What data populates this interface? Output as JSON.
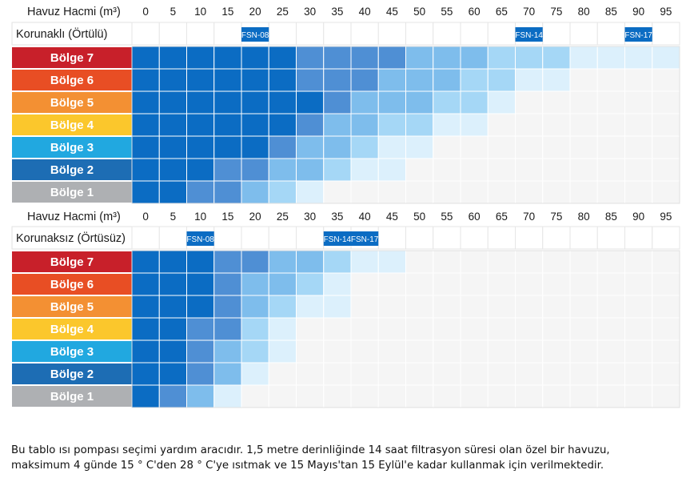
{
  "chart_data": [
    {
      "type": "heatmap",
      "header_label": "Havuz Hacmi (m³)",
      "section_label": "Korunaklı (Örtülü)",
      "x": [
        0,
        5,
        10,
        15,
        20,
        25,
        30,
        35,
        40,
        45,
        50,
        55,
        60,
        65,
        70,
        75,
        80,
        85,
        90,
        95
      ],
      "markers": [
        {
          "label": "FSN-08",
          "x": 20
        },
        {
          "label": "FSN-14",
          "x": 70
        },
        {
          "label": "FSN-17",
          "x": 90
        }
      ],
      "rows": [
        {
          "name": "Bölge 7",
          "color": "#c8202a",
          "levels": [
            5,
            5,
            5,
            5,
            5,
            5,
            4,
            4,
            4,
            4,
            3,
            3,
            3,
            2,
            2,
            2,
            1,
            1,
            1,
            1
          ]
        },
        {
          "name": "Bölge 6",
          "color": "#e84e24",
          "levels": [
            5,
            5,
            5,
            5,
            5,
            5,
            4,
            4,
            4,
            3,
            3,
            3,
            2,
            2,
            1,
            1,
            0,
            0,
            0,
            0
          ]
        },
        {
          "name": "Bölge 5",
          "color": "#f39033",
          "levels": [
            5,
            5,
            5,
            5,
            5,
            5,
            5,
            4,
            3,
            3,
            3,
            2,
            2,
            1,
            0,
            0,
            0,
            0,
            0,
            0
          ]
        },
        {
          "name": "Bölge 4",
          "color": "#fbc72c",
          "levels": [
            5,
            5,
            5,
            5,
            5,
            5,
            4,
            3,
            3,
            2,
            2,
            1,
            1,
            0,
            0,
            0,
            0,
            0,
            0,
            0
          ]
        },
        {
          "name": "Bölge 3",
          "color": "#21a8e0",
          "levels": [
            5,
            5,
            5,
            5,
            5,
            4,
            3,
            3,
            2,
            1,
            1,
            0,
            0,
            0,
            0,
            0,
            0,
            0,
            0,
            0
          ]
        },
        {
          "name": "Bölge 2",
          "color": "#1d6db4",
          "levels": [
            5,
            5,
            5,
            4,
            4,
            3,
            3,
            2,
            1,
            1,
            0,
            0,
            0,
            0,
            0,
            0,
            0,
            0,
            0,
            0
          ]
        },
        {
          "name": "Bölge 1",
          "color": "#aeb0b3",
          "levels": [
            5,
            5,
            4,
            4,
            3,
            2,
            1,
            0,
            0,
            0,
            0,
            0,
            0,
            0,
            0,
            0,
            0,
            0,
            0,
            0
          ]
        }
      ]
    },
    {
      "type": "heatmap",
      "header_label": "Havuz Hacmi (m³)",
      "section_label": "Korunaksız (Örtüsüz)",
      "x": [
        0,
        5,
        10,
        15,
        20,
        25,
        30,
        35,
        40,
        45,
        50,
        55,
        60,
        65,
        70,
        75,
        80,
        85,
        90,
        95
      ],
      "markers": [
        {
          "label": "FSN-08",
          "x": 10
        },
        {
          "label": "FSN-14",
          "x": 35
        },
        {
          "label": "FSN-17",
          "x": 40
        }
      ],
      "rows": [
        {
          "name": "Bölge 7",
          "color": "#c8202a",
          "levels": [
            5,
            5,
            5,
            4,
            4,
            3,
            3,
            2,
            1,
            1,
            0,
            0,
            0,
            0,
            0,
            0,
            0,
            0,
            0,
            0
          ]
        },
        {
          "name": "Bölge 6",
          "color": "#e84e24",
          "levels": [
            5,
            5,
            5,
            4,
            3,
            3,
            2,
            1,
            0,
            0,
            0,
            0,
            0,
            0,
            0,
            0,
            0,
            0,
            0,
            0
          ]
        },
        {
          "name": "Bölge 5",
          "color": "#f39033",
          "levels": [
            5,
            5,
            5,
            4,
            3,
            2,
            1,
            1,
            0,
            0,
            0,
            0,
            0,
            0,
            0,
            0,
            0,
            0,
            0,
            0
          ]
        },
        {
          "name": "Bölge 4",
          "color": "#fbc72c",
          "levels": [
            5,
            5,
            4,
            4,
            2,
            1,
            0,
            0,
            0,
            0,
            0,
            0,
            0,
            0,
            0,
            0,
            0,
            0,
            0,
            0
          ]
        },
        {
          "name": "Bölge 3",
          "color": "#21a8e0",
          "levels": [
            5,
            5,
            4,
            3,
            2,
            1,
            0,
            0,
            0,
            0,
            0,
            0,
            0,
            0,
            0,
            0,
            0,
            0,
            0,
            0
          ]
        },
        {
          "name": "Bölge 2",
          "color": "#1d6db4",
          "levels": [
            5,
            5,
            4,
            3,
            1,
            0,
            0,
            0,
            0,
            0,
            0,
            0,
            0,
            0,
            0,
            0,
            0,
            0,
            0,
            0
          ]
        },
        {
          "name": "Bölge 1",
          "color": "#aeb0b3",
          "levels": [
            5,
            4,
            3,
            1,
            0,
            0,
            0,
            0,
            0,
            0,
            0,
            0,
            0,
            0,
            0,
            0,
            0,
            0,
            0,
            0
          ]
        }
      ]
    }
  ],
  "level_colors": [
    "#f5f5f5",
    "#dcf0fc",
    "#a5d7f6",
    "#7ebdec",
    "#4f8fd4",
    "#0b6cc3"
  ],
  "marker_color": "#0b6cc3",
  "note": [
    "Bu tablo ısı pompası seçimi yardım aracıdır. 1,5 metre derinliğinde 14 saat filtrasyon süresi olan özel bir havuzu,",
    "maksimum 4 günde 15 ° C'den 28 ° C'ye ısıtmak ve 15 Mayıs'tan 15 Eylül'e kadar kullanmak için verilmektedir."
  ]
}
